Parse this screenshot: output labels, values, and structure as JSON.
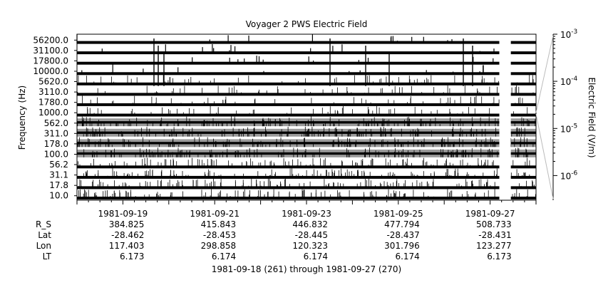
{
  "chart_data": {
    "type": "heatmap",
    "title": "Voyager 2 PWS Electric Field",
    "ylabel": "Frequency (Hz)",
    "colorbar_label": "Electric Field (V/m)",
    "colorbar_ticks": [
      "10^-3",
      "10^-4",
      "10^-5",
      "10^-6"
    ],
    "colorbar_range": [
      3e-07,
      0.001
    ],
    "colorbar_scale": "log",
    "frequency_channels": [
      "56200.0",
      "31100.0",
      "17800.0",
      "10000.0",
      "5620.0",
      "3110.0",
      "1780.0",
      "1000.0",
      "562.0",
      "311.0",
      "178.0",
      "100.0",
      "56.2",
      "31.1",
      "17.8",
      "10.0"
    ],
    "x_tick_labels": [
      "1981-09-19",
      "1981-09-21",
      "1981-09-23",
      "1981-09-25",
      "1981-09-27"
    ],
    "x_range_days": [
      261,
      271
    ],
    "data_gap_days": [
      270.2,
      270.45
    ],
    "ephemeris": {
      "labels": [
        "R_S",
        "Lat",
        "Lon",
        "LT"
      ],
      "columns": [
        [
          "384.825",
          "-28.462",
          "117.403",
          "6.173"
        ],
        [
          "415.843",
          "-28.453",
          "298.858",
          "6.174"
        ],
        [
          "446.832",
          "-28.445",
          "120.323",
          "6.174"
        ],
        [
          "477.794",
          "-28.437",
          "301.796",
          "6.174"
        ],
        [
          "508.733",
          "-28.431",
          "123.277",
          "6.173"
        ]
      ]
    },
    "footer": "1981-09-18 (261) through 1981-09-27 (270)"
  },
  "colors": {
    "background_band": "#000000",
    "mid_band": "#9a9a9a",
    "spike": "#000000",
    "frame": "#000000"
  }
}
